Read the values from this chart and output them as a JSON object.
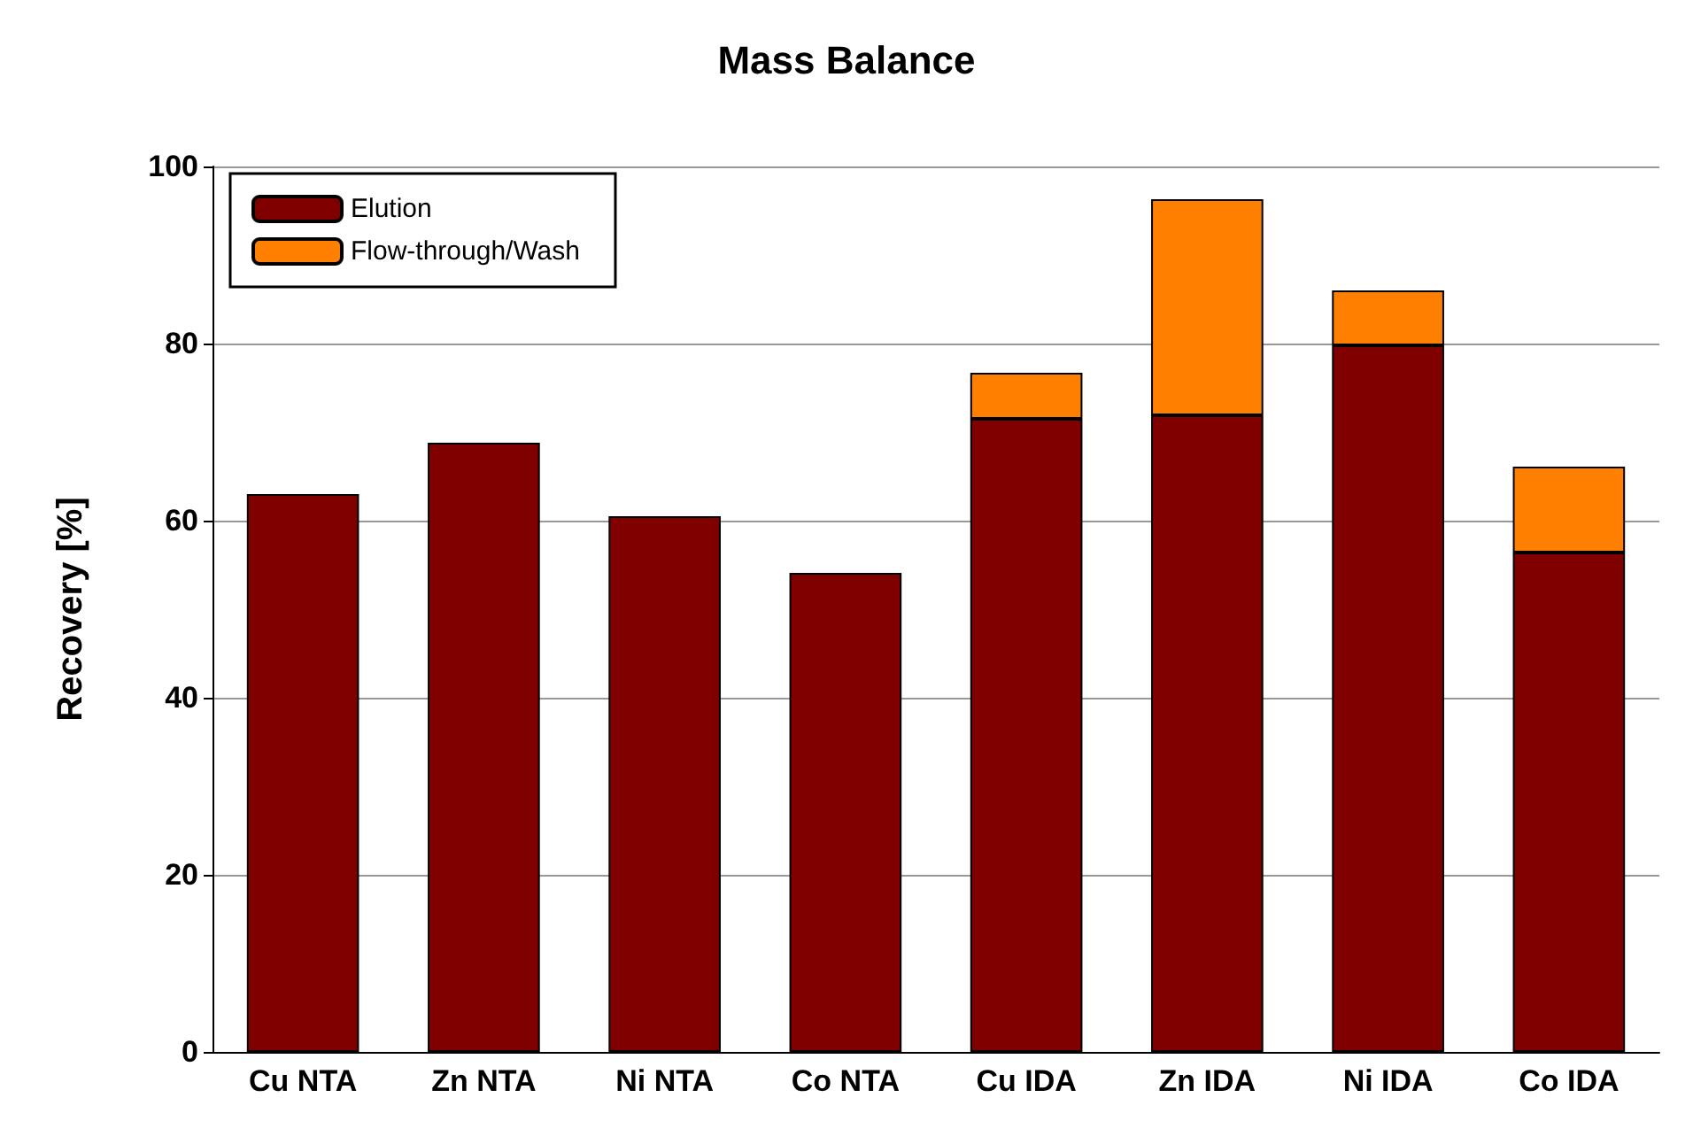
{
  "chart_data": {
    "type": "bar",
    "title": "Mass Balance",
    "ylabel": "Recovery [%]",
    "categories": [
      "Cu NTA",
      "Zn NTA",
      "Ni NTA",
      "Co NTA",
      "Cu IDA",
      "Zn IDA",
      "Ni IDA",
      "Co IDA"
    ],
    "stacked": true,
    "series": [
      {
        "name": "Elution",
        "color": "#800000",
        "values": [
          63.0,
          68.8,
          60.5,
          54.1,
          71.5,
          71.9,
          79.8,
          56.4
        ]
      },
      {
        "name": "Flow-through/Wash",
        "color": "#ff8000",
        "values": [
          null,
          null,
          null,
          null,
          5.2,
          24.4,
          6.2,
          9.7
        ]
      }
    ],
    "ylim": [
      0,
      100
    ],
    "yticks": [
      0,
      20,
      40,
      60,
      80,
      100
    ],
    "grid": "y",
    "legend": "top left"
  }
}
